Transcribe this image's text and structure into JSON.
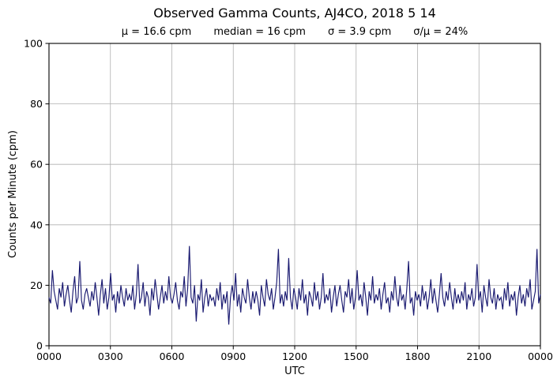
{
  "chart_data": {
    "type": "line",
    "title": "Observed Gamma Counts, AJ4CO, 2018 5 14",
    "stats": {
      "mu": "μ = 16.6 cpm",
      "median": "median = 16 cpm",
      "sigma": "σ = 3.9 cpm",
      "ratio": "σ/μ = 24%"
    },
    "xlabel": "UTC",
    "ylabel": "Counts per Minute (cpm)",
    "ylim": [
      0,
      100
    ],
    "y_ticks": [
      0,
      20,
      40,
      60,
      80,
      100
    ],
    "x_tick_labels": [
      "0000",
      "0300",
      "0600",
      "0900",
      "1200",
      "1500",
      "1800",
      "2100",
      "0000"
    ],
    "x_span_hours": 24,
    "grid": true,
    "legend": "none",
    "line_color": "#191970",
    "grid_color": "#b0b0b0",
    "series_name": "observed gamma counts",
    "sample_interval_minutes": 5,
    "resolution_note": "noisy 24-h count-rate trace, mean 16.6 cpm, sd 3.9 cpm, min ~7 cpm, max ~33 cpm; values resampled at 5-min steps",
    "values": [
      16,
      14,
      25,
      18,
      15,
      12,
      19,
      16,
      21,
      13,
      17,
      20,
      15,
      11,
      18,
      23,
      14,
      16,
      28,
      15,
      12,
      17,
      19,
      16,
      13,
      18,
      15,
      21,
      16,
      10,
      17,
      22,
      14,
      19,
      12,
      16,
      24,
      15,
      17,
      11,
      18,
      14,
      20,
      16,
      13,
      19,
      15,
      17,
      15,
      20,
      12,
      17,
      27,
      14,
      16,
      21,
      13,
      18,
      16,
      10,
      19,
      15,
      22,
      17,
      12,
      16,
      20,
      14,
      18,
      15,
      23,
      16,
      14,
      17,
      21,
      15,
      12,
      18,
      16,
      23,
      13,
      19,
      33,
      16,
      14,
      20,
      8,
      17,
      15,
      22,
      11,
      16,
      19,
      13,
      17,
      15,
      16,
      13,
      19,
      15,
      21,
      12,
      17,
      14,
      18,
      7,
      16,
      20,
      15,
      24,
      13,
      17,
      11,
      19,
      16,
      14,
      22,
      16,
      12,
      18,
      14,
      18,
      15,
      10,
      20,
      16,
      13,
      22,
      17,
      15,
      19,
      12,
      16,
      21,
      32,
      14,
      17,
      13,
      18,
      15,
      29,
      16,
      12,
      19,
      16,
      12,
      19,
      15,
      22,
      14,
      17,
      10,
      18,
      16,
      13,
      21,
      15,
      18,
      12,
      16,
      24,
      14,
      17,
      15,
      19,
      11,
      16,
      20,
      13,
      17,
      20,
      15,
      11,
      18,
      16,
      22,
      14,
      19,
      12,
      16,
      25,
      15,
      17,
      13,
      21,
      16,
      10,
      18,
      15,
      23,
      14,
      17,
      15,
      19,
      12,
      17,
      21,
      14,
      16,
      11,
      18,
      15,
      23,
      16,
      13,
      20,
      15,
      17,
      12,
      19,
      28,
      14,
      16,
      10,
      18,
      15,
      17,
      13,
      20,
      15,
      18,
      12,
      16,
      22,
      14,
      19,
      15,
      11,
      17,
      24,
      16,
      13,
      18,
      15,
      21,
      16,
      12,
      19,
      14,
      17,
      14,
      18,
      15,
      21,
      12,
      17,
      15,
      19,
      13,
      16,
      27,
      15,
      18,
      11,
      20,
      16,
      13,
      22,
      16,
      14,
      19,
      12,
      17,
      15,
      16,
      12,
      19,
      15,
      21,
      13,
      17,
      15,
      18,
      10,
      16,
      20,
      14,
      17,
      13,
      19,
      16,
      22,
      12,
      15,
      18,
      32,
      14,
      17
    ]
  }
}
